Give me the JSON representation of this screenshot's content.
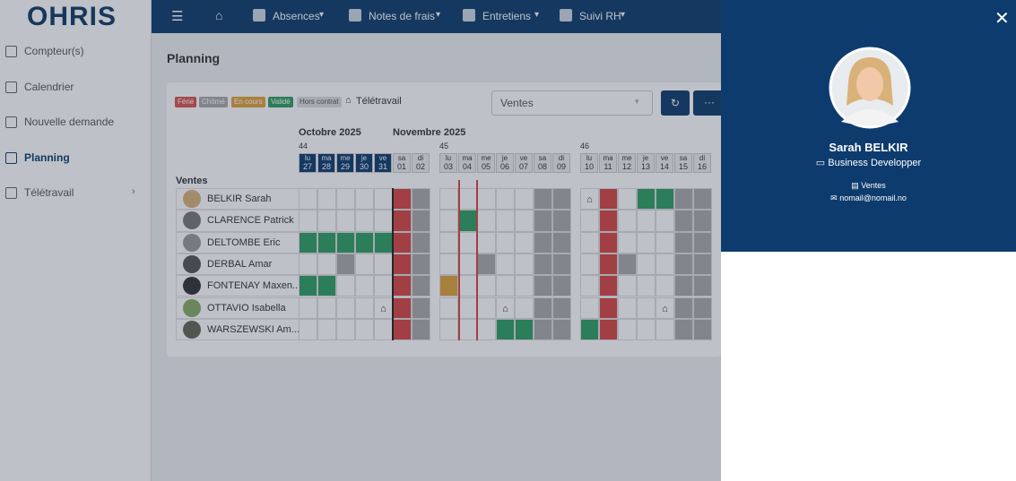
{
  "logo": "OHRIS",
  "nav": [
    "Absences",
    "Notes de frais",
    "Entretiens",
    "Suivi RH"
  ],
  "sidebar": [
    "Compteur(s)",
    "Calendrier",
    "Nouvelle demande",
    "Planning",
    "Télétravail"
  ],
  "page_title": "Planning",
  "legend": [
    "Férié",
    "Chômé",
    "En cours",
    "Validé",
    "Hors contrat",
    "Télétravail"
  ],
  "filter": "Ventes",
  "months": [
    "Octobre 2025",
    "Novembre 2025"
  ],
  "weeks": [
    {
      "number": "44",
      "days": [
        [
          "lu",
          "27"
        ],
        [
          "ma",
          "28"
        ],
        [
          "me",
          "29"
        ],
        [
          "je",
          "30"
        ],
        [
          "ve",
          "31"
        ],
        [
          "sa",
          "01"
        ],
        [
          "di",
          "02"
        ]
      ]
    },
    {
      "number": "45",
      "days": [
        [
          "lu",
          "03"
        ],
        [
          "ma",
          "04"
        ],
        [
          "me",
          "05"
        ],
        [
          "je",
          "06"
        ],
        [
          "ve",
          "07"
        ],
        [
          "sa",
          "08"
        ],
        [
          "di",
          "09"
        ]
      ]
    },
    {
      "number": "46",
      "days": [
        [
          "lu",
          "10"
        ],
        [
          "ma",
          "11"
        ],
        [
          "me",
          "12"
        ],
        [
          "je",
          "13"
        ],
        [
          "ve",
          "14"
        ],
        [
          "sa",
          "15"
        ],
        [
          "di",
          "16"
        ]
      ]
    }
  ],
  "group": "Ventes",
  "employees": [
    "BELKIR Sarah",
    "CLARENCE Patrick",
    "DELTOMBE Eric",
    "DERBAL Amar",
    "FONTENAY Maxen...",
    "OTTAVIO Isabella",
    "WARSZEWSKI Am..."
  ],
  "panel": {
    "name": "Sarah BELKIR",
    "role": "Business Developper",
    "team": "Ventes",
    "email": "nomail@nomail.no"
  }
}
